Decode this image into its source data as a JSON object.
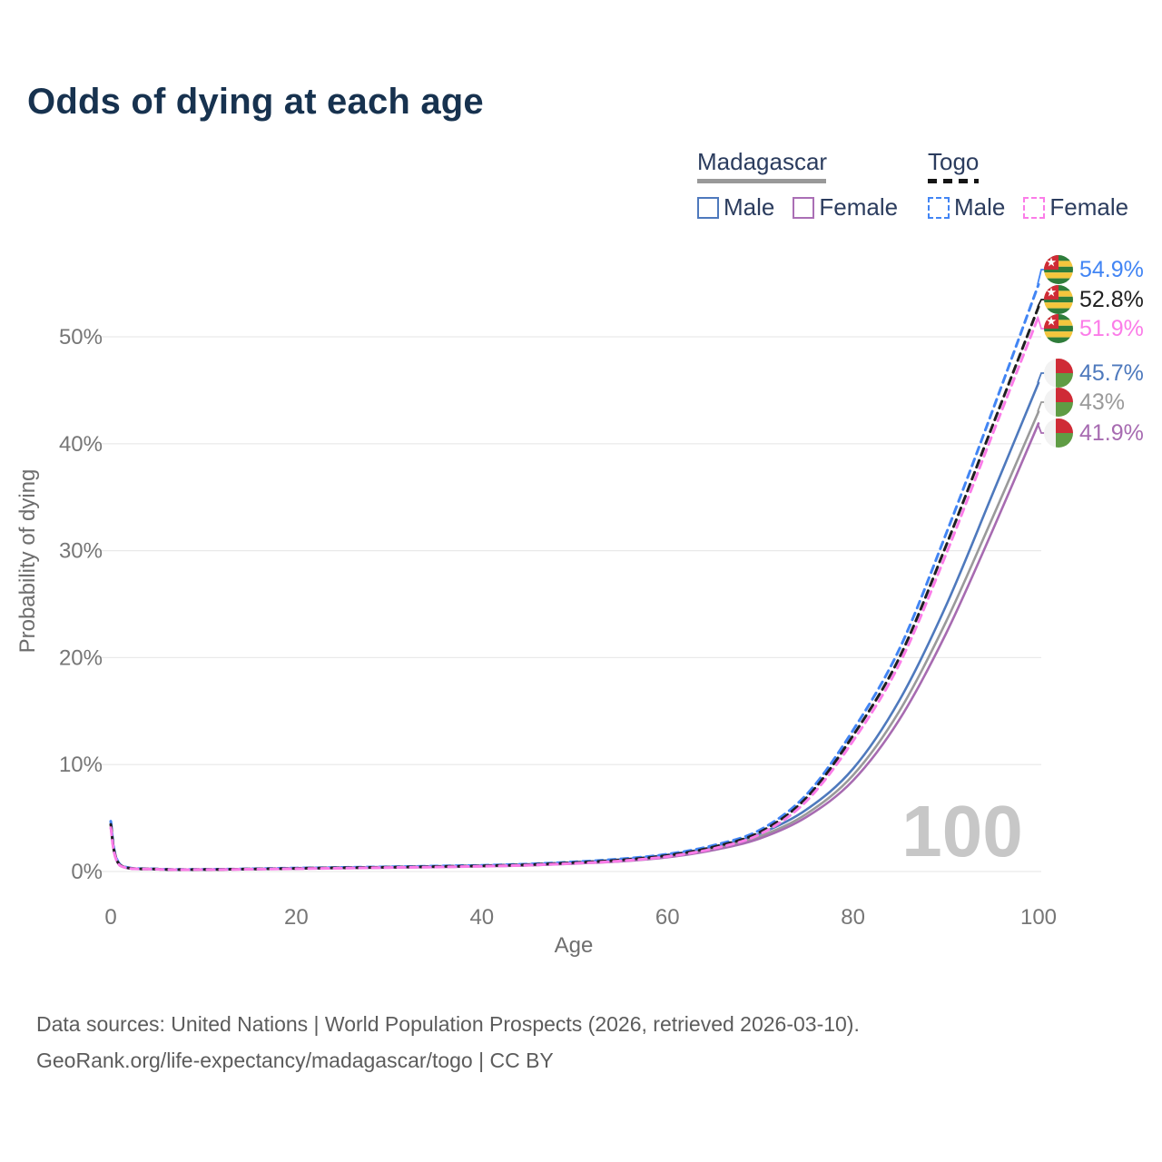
{
  "title": "Odds of dying at each age",
  "legend": {
    "groups": [
      {
        "name": "Madagascar",
        "line_style": "solid",
        "underline_color": "#999999",
        "items": [
          {
            "label": "Male",
            "color": "#4e79bd"
          },
          {
            "label": "Female",
            "color": "#aa6fb5"
          }
        ]
      },
      {
        "name": "Togo",
        "line_style": "dashed",
        "underline_color": "#151515",
        "items": [
          {
            "label": "Male",
            "color": "#4285f4"
          },
          {
            "label": "Female",
            "color": "#fb7ce8"
          }
        ]
      }
    ]
  },
  "end_labels": [
    {
      "value": "54.9%",
      "color": "#4285f4",
      "flag": "togo-flag-icon",
      "series": "Togo Male"
    },
    {
      "value": "52.8%",
      "color": "#1f1f1f",
      "flag": "togo-flag-icon",
      "series": "Togo Both sexes"
    },
    {
      "value": "51.9%",
      "color": "#fb7ce8",
      "flag": "togo-flag-icon",
      "series": "Togo Female"
    },
    {
      "value": "45.7%",
      "color": "#4e79bd",
      "flag": "madagascar-flag-icon",
      "series": "Madagascar Male"
    },
    {
      "value": "43%",
      "color": "#9a9a9a",
      "flag": "madagascar-flag-icon",
      "series": "Madagascar Both sexes"
    },
    {
      "value": "41.9%",
      "color": "#a76bb1",
      "flag": "madagascar-flag-icon",
      "series": "Madagascar Female"
    }
  ],
  "watermark": "100",
  "axes": {
    "y_title": "Probability of dying",
    "x_title": "Age",
    "y_ticks": [
      {
        "label": "0%",
        "value": 0
      },
      {
        "label": "10%",
        "value": 10
      },
      {
        "label": "20%",
        "value": 20
      },
      {
        "label": "30%",
        "value": 30
      },
      {
        "label": "40%",
        "value": 40
      },
      {
        "label": "50%",
        "value": 50
      }
    ],
    "x_ticks": [
      {
        "label": "0",
        "value": 0
      },
      {
        "label": "20",
        "value": 20
      },
      {
        "label": "40",
        "value": 40
      },
      {
        "label": "60",
        "value": 60
      },
      {
        "label": "80",
        "value": 80
      },
      {
        "label": "100",
        "value": 100
      }
    ],
    "grid_color": "#e9e9e9",
    "tick_color": "#767676"
  },
  "footer": {
    "line1": "Data sources: United Nations | World Population Prospects (2026, retrieved 2026-03-10).",
    "line2": "GeoRank.org/life-expectancy/madagascar/togo | CC BY"
  },
  "chart_data": {
    "type": "line",
    "title": "Odds of dying at each age",
    "xlabel": "Age",
    "ylabel": "Probability of dying",
    "xlim": [
      0,
      100
    ],
    "ylim": [
      0,
      57
    ],
    "grid": "horizontal",
    "x": [
      0,
      1,
      5,
      10,
      15,
      20,
      25,
      30,
      35,
      40,
      45,
      50,
      55,
      60,
      65,
      70,
      75,
      80,
      85,
      90,
      95,
      100
    ],
    "series": [
      {
        "name": "Madagascar Male",
        "color": "#4e79bd",
        "dash": false,
        "end_value": "45.7%",
        "values": [
          4.6,
          0.62,
          0.23,
          0.19,
          0.24,
          0.31,
          0.37,
          0.43,
          0.49,
          0.56,
          0.67,
          0.86,
          1.12,
          1.55,
          2.3,
          3.55,
          5.8,
          9.6,
          16.0,
          24.8,
          35.2,
          45.7
        ]
      },
      {
        "name": "Madagascar Both sexes",
        "color": "#9a9a9a",
        "dash": false,
        "end_value": "43%",
        "values": [
          4.35,
          0.58,
          0.22,
          0.18,
          0.22,
          0.28,
          0.34,
          0.39,
          0.45,
          0.52,
          0.62,
          0.8,
          1.03,
          1.44,
          2.15,
          3.3,
          5.4,
          9.0,
          15.0,
          23.3,
          33.0,
          43.0
        ]
      },
      {
        "name": "Madagascar Female",
        "color": "#a76bb1",
        "dash": false,
        "end_value": "41.9%",
        "values": [
          4.05,
          0.54,
          0.2,
          0.17,
          0.21,
          0.26,
          0.31,
          0.36,
          0.41,
          0.48,
          0.57,
          0.74,
          0.95,
          1.33,
          2.0,
          3.1,
          5.1,
          8.5,
          14.2,
          22.2,
          31.8,
          41.9
        ]
      },
      {
        "name": "Togo Male",
        "color": "#4285f4",
        "dash": true,
        "end_value": "54.9%",
        "values": [
          4.7,
          0.65,
          0.24,
          0.2,
          0.25,
          0.32,
          0.38,
          0.44,
          0.51,
          0.58,
          0.7,
          0.9,
          1.18,
          1.62,
          2.45,
          3.9,
          7.2,
          13.2,
          20.8,
          31.5,
          43.0,
          54.9
        ]
      },
      {
        "name": "Togo Both sexes",
        "color": "#1f1f1f",
        "dash": true,
        "end_value": "52.8%",
        "values": [
          4.4,
          0.6,
          0.22,
          0.19,
          0.23,
          0.29,
          0.35,
          0.4,
          0.46,
          0.53,
          0.64,
          0.83,
          1.08,
          1.5,
          2.3,
          3.7,
          6.9,
          12.7,
          20.0,
          30.4,
          41.6,
          52.8
        ]
      },
      {
        "name": "Togo Female",
        "color": "#fb7ce8",
        "dash": true,
        "end_value": "51.9%",
        "values": [
          4.1,
          0.55,
          0.21,
          0.18,
          0.21,
          0.26,
          0.31,
          0.37,
          0.42,
          0.49,
          0.59,
          0.76,
          0.99,
          1.4,
          2.15,
          3.5,
          6.6,
          12.2,
          19.4,
          29.6,
          40.8,
          51.9
        ]
      }
    ]
  }
}
